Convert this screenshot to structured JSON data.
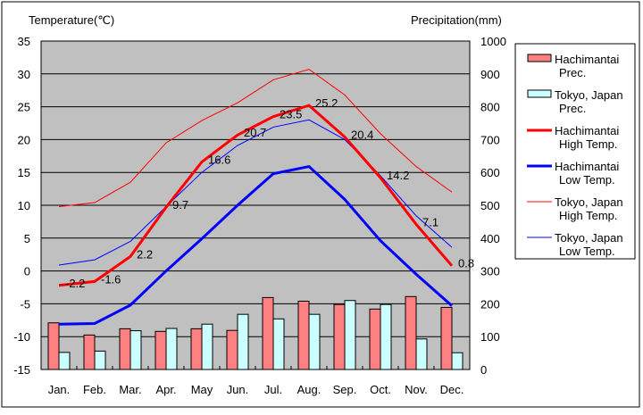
{
  "chart_data": {
    "type": "bar+line",
    "left_axis_label": "Temperature(℃)",
    "right_axis_label": "Precipitation(mm)",
    "left_ylim": [
      -15,
      35
    ],
    "right_ylim": [
      0,
      1000
    ],
    "left_ticks": [
      35,
      30,
      25,
      20,
      15,
      10,
      5,
      0,
      -5,
      -10,
      -15
    ],
    "right_ticks": [
      1000,
      900,
      800,
      700,
      600,
      500,
      400,
      300,
      200,
      100,
      0
    ],
    "categories": [
      "Jan.",
      "Feb.",
      "Mar.",
      "Apr.",
      "May",
      "Jun.",
      "Jul.",
      "Aug.",
      "Sep.",
      "Oct.",
      "Nov.",
      "Dec."
    ],
    "grid": true,
    "legend_position": "right",
    "bars": [
      {
        "name": "Hachimantai Prec.",
        "label_lines": [
          "Hachimantai",
          "Prec."
        ],
        "color": "#ff8080",
        "values": [
          142,
          105,
          124,
          116,
          124,
          119,
          219,
          208,
          198,
          184,
          222,
          189
        ]
      },
      {
        "name": "Tokyo, Japan Prec.",
        "label_lines": [
          "Tokyo, Japan",
          "Prec."
        ],
        "color": "#ccffff",
        "values": [
          52,
          56,
          118,
          125,
          138,
          168,
          154,
          168,
          210,
          198,
          93,
          51
        ]
      }
    ],
    "lines": [
      {
        "name": "Hachimantai High Temp.",
        "label_lines": [
          "Hachimantai",
          "High Temp."
        ],
        "color": "#ff0000",
        "width": 3,
        "values": [
          -2.2,
          -1.6,
          2.2,
          9.7,
          16.6,
          20.7,
          23.5,
          25.2,
          20.4,
          14.2,
          7.1,
          0.8
        ],
        "data_labels": [
          "-2.2",
          "-1.6",
          "2.2",
          "9.7",
          "16.6",
          "20.7",
          "23.5",
          "25.2",
          "20.4",
          "14.2",
          "7.1",
          "0.8"
        ]
      },
      {
        "name": "Hachimantai Low Temp.",
        "label_lines": [
          "Hachimantai",
          "Low Temp."
        ],
        "color": "#0000ff",
        "width": 3,
        "values": [
          -8.1,
          -8.0,
          -5.2,
          0.0,
          4.9,
          10.0,
          14.8,
          15.9,
          10.9,
          4.6,
          -0.5,
          -5.3
        ]
      },
      {
        "name": "Tokyo, Japan High Temp.",
        "label_lines": [
          "Tokyo, Japan",
          "High Temp."
        ],
        "color": "#ff0000",
        "width": 1,
        "values": [
          9.8,
          10.4,
          13.5,
          19.5,
          22.9,
          25.6,
          29.1,
          30.7,
          26.8,
          20.9,
          15.9,
          12.0
        ]
      },
      {
        "name": "Tokyo, Japan Low Temp.",
        "label_lines": [
          "Tokyo, Japan",
          "Low Temp."
        ],
        "color": "#0000ff",
        "width": 1,
        "values": [
          0.9,
          1.7,
          4.5,
          9.8,
          15.0,
          19.1,
          21.9,
          23.0,
          20.0,
          14.5,
          8.4,
          3.6
        ]
      }
    ]
  }
}
